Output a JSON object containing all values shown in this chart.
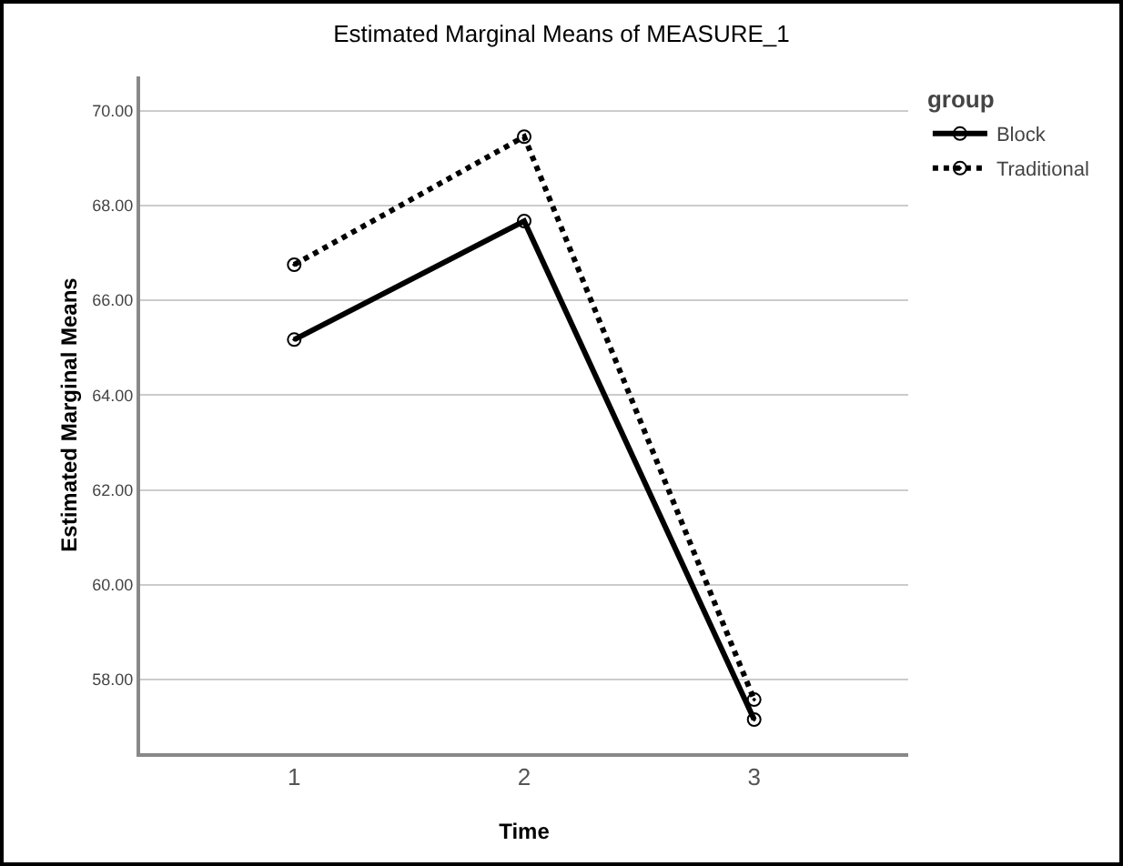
{
  "chart_data": {
    "type": "line",
    "title": "Estimated Marginal Means of MEASURE_1",
    "xlabel": "Time",
    "ylabel": "Estimated Marginal Means",
    "legend_title": "group",
    "categories": [
      "1",
      "2",
      "3"
    ],
    "series": [
      {
        "name": "Block",
        "color": "#000000",
        "line_style": "solid",
        "values": [
          65.17,
          67.67,
          57.16
        ]
      },
      {
        "name": "Traditional",
        "color": "#000000",
        "line_style": "dotted",
        "values": [
          66.75,
          69.45,
          57.58
        ]
      }
    ],
    "ylim": [
      56.45,
      70.72
    ],
    "yticks": [
      {
        "value": 58,
        "label": "58.00"
      },
      {
        "value": 60,
        "label": "60.00"
      },
      {
        "value": 62,
        "label": "62.00"
      },
      {
        "value": 64,
        "label": "64.00"
      },
      {
        "value": 66,
        "label": "66.00"
      },
      {
        "value": 68,
        "label": "68.00"
      },
      {
        "value": 70,
        "label": "70.00"
      }
    ],
    "grid": "y",
    "legend": "top right",
    "marker": "circle"
  }
}
